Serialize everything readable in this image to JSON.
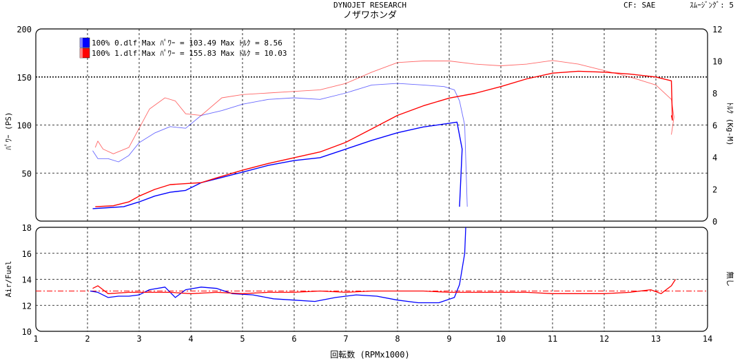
{
  "header": {
    "title": "DYNOJET  RESEARCH",
    "subtitle": "ノザワホンダ",
    "cf": "CF: SAE",
    "smoothing": "ｽﾑｰｼﾞﾝｸﾞ: 5"
  },
  "legend": [
    {
      "label": "100% 0.dlf Max ﾊﾟﾜｰ = 103.49   Max ﾄﾙｸ = 8.56",
      "color": "#0000ff"
    },
    {
      "label": "100% 1.dlf Max ﾊﾟﾜｰ = 155.83   Max ﾄﾙｸ = 10.03",
      "color": "#ff0000"
    }
  ],
  "axes": {
    "x_label": "回転数 (RPMx1000)",
    "y_power_label": "ﾊﾟﾜｰ (PS)",
    "y_torque_label": "ﾄﾙｸ (Kg-M)",
    "y_af_label": "Air/Fuel",
    "y_af_right_label": "無し"
  },
  "chart_data": [
    {
      "type": "line",
      "panel": "power-torque",
      "xlim": [
        1,
        14
      ],
      "ylim_left": [
        0,
        200
      ],
      "ylim_right": [
        0,
        12
      ],
      "x_ticks": [
        1,
        2,
        3,
        4,
        5,
        6,
        7,
        8,
        9,
        10,
        11,
        12,
        13,
        14
      ],
      "y_ticks_left": [
        50,
        100,
        150,
        200
      ],
      "y_ticks_right": [
        0,
        2,
        4,
        6,
        8,
        10,
        12
      ],
      "reference_line_y": 150,
      "grid": true,
      "series": [
        {
          "name": "100% 0.dlf",
          "measure": "power",
          "axis": "left",
          "color": "#0000ff",
          "x": [
            2.1,
            2.4,
            2.7,
            3.0,
            3.3,
            3.6,
            3.9,
            4.2,
            4.5,
            5.0,
            5.5,
            6.0,
            6.5,
            7.0,
            7.5,
            8.0,
            8.5,
            8.9,
            9.15,
            9.25,
            9.2
          ],
          "y": [
            13,
            14,
            15,
            20,
            26,
            30,
            32,
            40,
            44,
            51,
            58,
            63,
            66,
            75,
            84,
            92,
            98,
            101,
            103,
            75,
            15
          ]
        },
        {
          "name": "100% 0.dlf",
          "measure": "torque",
          "axis": "right",
          "color": "#0000ff",
          "x": [
            2.1,
            2.2,
            2.4,
            2.6,
            2.8,
            3.0,
            3.3,
            3.6,
            3.9,
            4.2,
            4.6,
            5.0,
            5.5,
            6.0,
            6.5,
            7.0,
            7.5,
            8.0,
            8.5,
            8.9,
            9.1,
            9.2,
            9.3,
            9.35
          ],
          "y": [
            4.4,
            3.9,
            3.9,
            3.7,
            4.1,
            4.9,
            5.5,
            5.9,
            5.8,
            6.6,
            6.9,
            7.3,
            7.6,
            7.7,
            7.6,
            8.0,
            8.5,
            8.6,
            8.5,
            8.4,
            8.2,
            7.5,
            6.0,
            0.9
          ]
        },
        {
          "name": "100% 1.dlf",
          "measure": "power",
          "axis": "left",
          "color": "#ff0000",
          "x": [
            2.15,
            2.5,
            2.8,
            3.0,
            3.3,
            3.6,
            3.9,
            4.2,
            4.5,
            5.0,
            5.5,
            6.0,
            6.5,
            7.0,
            7.5,
            8.0,
            8.5,
            9.0,
            9.5,
            10.0,
            10.5,
            11.0,
            11.5,
            12.0,
            12.5,
            13.0,
            13.3,
            13.32,
            13.3
          ],
          "y": [
            15,
            16,
            20,
            26,
            33,
            38,
            39,
            40,
            45,
            53,
            60,
            66,
            72,
            82,
            96,
            110,
            120,
            128,
            133,
            140,
            148,
            154,
            156,
            155,
            153,
            150,
            146,
            105,
            110
          ]
        },
        {
          "name": "100% 1.dlf",
          "measure": "torque",
          "axis": "right",
          "color": "#ff0000",
          "x": [
            2.15,
            2.2,
            2.3,
            2.5,
            2.8,
            3.0,
            3.2,
            3.5,
            3.7,
            3.9,
            4.2,
            4.6,
            5.0,
            5.5,
            6.0,
            6.5,
            7.0,
            7.5,
            8.0,
            8.5,
            9.0,
            9.5,
            10.0,
            10.5,
            11.0,
            11.5,
            12.0,
            12.5,
            13.0,
            13.3,
            13.35,
            13.3
          ],
          "y": [
            4.6,
            5.0,
            4.5,
            4.2,
            4.6,
            5.8,
            7.0,
            7.7,
            7.5,
            6.7,
            6.6,
            7.7,
            7.9,
            8.0,
            8.1,
            8.2,
            8.6,
            9.3,
            9.9,
            10.0,
            10.0,
            9.8,
            9.7,
            9.8,
            10.03,
            9.8,
            9.4,
            9.0,
            8.5,
            7.6,
            6.5,
            5.4
          ]
        }
      ]
    },
    {
      "type": "line",
      "panel": "air-fuel",
      "xlim": [
        1,
        14
      ],
      "ylim": [
        10,
        18
      ],
      "x_ticks": [
        1,
        2,
        3,
        4,
        5,
        6,
        7,
        8,
        9,
        10,
        11,
        12,
        13,
        14
      ],
      "y_ticks": [
        10,
        12,
        14,
        16,
        18
      ],
      "reference_line_y": 13.1,
      "grid": true,
      "series": [
        {
          "name": "100% 0.dlf",
          "color": "#0000ff",
          "x": [
            2.05,
            2.2,
            2.4,
            2.6,
            2.8,
            3.0,
            3.2,
            3.5,
            3.7,
            3.9,
            4.2,
            4.5,
            4.8,
            5.2,
            5.6,
            6.0,
            6.4,
            6.8,
            7.2,
            7.6,
            8.0,
            8.4,
            8.8,
            9.1,
            9.2,
            9.3,
            9.32
          ],
          "y": [
            13.1,
            13.0,
            12.6,
            12.7,
            12.7,
            12.8,
            13.2,
            13.4,
            12.6,
            13.2,
            13.4,
            13.3,
            12.9,
            12.8,
            12.5,
            12.4,
            12.3,
            12.6,
            12.8,
            12.7,
            12.4,
            12.2,
            12.2,
            12.6,
            13.6,
            16.0,
            18.0
          ]
        },
        {
          "name": "100% 1.dlf",
          "color": "#ff0000",
          "x": [
            2.1,
            2.2,
            2.4,
            2.8,
            3.2,
            3.6,
            4.0,
            4.5,
            5.0,
            5.5,
            6.0,
            6.5,
            7.0,
            7.5,
            8.0,
            8.5,
            9.0,
            9.5,
            10.0,
            10.5,
            11.0,
            11.5,
            12.0,
            12.5,
            12.9,
            13.1,
            13.3,
            13.38
          ],
          "y": [
            13.3,
            13.5,
            12.9,
            13.0,
            13.0,
            13.0,
            12.9,
            13.0,
            12.9,
            13.0,
            13.0,
            13.1,
            13.0,
            13.1,
            13.1,
            13.1,
            13.0,
            13.0,
            13.0,
            13.0,
            12.9,
            12.9,
            12.9,
            13.0,
            13.2,
            12.9,
            13.5,
            14.0
          ]
        }
      ]
    }
  ]
}
